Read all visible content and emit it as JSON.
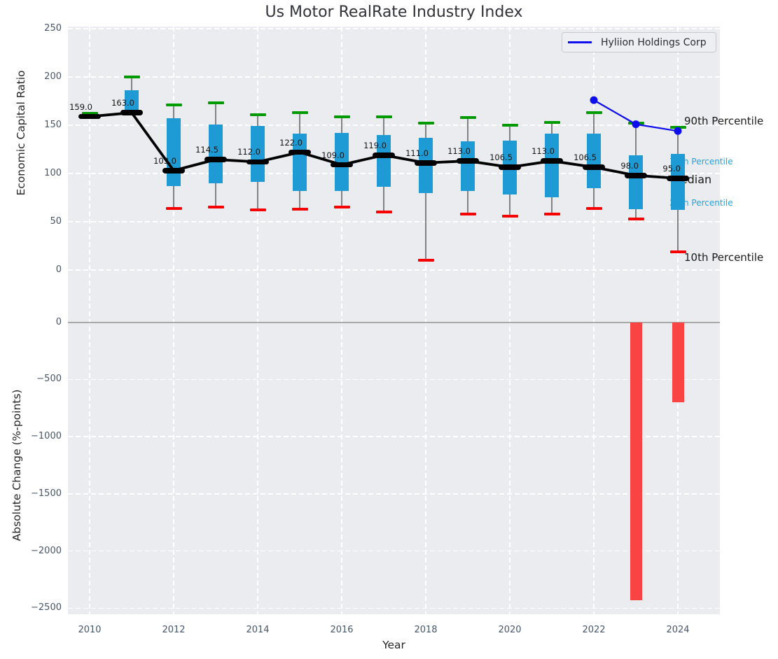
{
  "title": "Us Motor RealRate Industry Index",
  "legend": {
    "label": "Hyliion Holdings Corp"
  },
  "axis_labels": {
    "top_y": "Economic Capital Ratio",
    "bottom_y": "Absolute Change (%-points)",
    "x": "Year"
  },
  "annotations": {
    "p90": "90th Percentile",
    "p75": "75th Percentile",
    "median": "Median",
    "p25": "25th Percentile",
    "p10": "10th Percentile"
  },
  "colors": {
    "box": "#1e9bd4",
    "p90_cap": "#009b00",
    "p10_cap": "#f80000",
    "median_line": "#000000",
    "overlay_line": "#0d0dee",
    "bar": "#fa4343",
    "percentile_label": "#25a3dd",
    "whisker": "#828282",
    "plot_bg": "#eaecf0",
    "grid": "#ffffff",
    "tick": "#47566b",
    "zero_line": "#a9a9a9"
  },
  "chart_data": [
    {
      "type": "boxplot",
      "title": "Us Motor RealRate Industry Index",
      "xlabel": "Year",
      "ylabel": "Economic Capital Ratio",
      "ylim": [
        0,
        250
      ],
      "yticks": [
        250,
        200,
        150,
        100,
        50,
        0
      ],
      "xticks": [
        2010,
        2012,
        2014,
        2016,
        2018,
        2020,
        2022,
        2024
      ],
      "grid": true,
      "legend_position": "upper right",
      "categories": [
        2010,
        2011,
        2012,
        2013,
        2014,
        2015,
        2016,
        2017,
        2018,
        2019,
        2020,
        2021,
        2022,
        2023,
        2024
      ],
      "series": [
        {
          "name": "90th Percentile",
          "values": [
            162,
            200,
            171,
            173,
            161,
            163,
            159,
            159,
            152,
            158,
            150,
            153,
            163,
            152,
            148
          ]
        },
        {
          "name": "75th Percentile",
          "values": [
            160,
            186,
            157,
            151,
            149,
            141,
            142,
            140,
            137,
            133,
            134,
            141,
            141,
            119,
            120
          ]
        },
        {
          "name": "Median",
          "values": [
            159,
            163,
            103,
            114.5,
            112,
            122,
            109,
            119,
            111,
            113,
            106.5,
            113,
            106.5,
            98,
            95
          ]
        },
        {
          "name": "25th Percentile",
          "values": [
            158,
            164,
            87,
            90,
            91,
            82,
            82,
            86,
            80,
            82,
            78,
            75,
            85,
            63,
            62
          ]
        },
        {
          "name": "10th Percentile",
          "values": [
            158,
            163,
            64,
            65,
            62,
            63,
            65,
            60,
            10,
            58,
            56,
            58,
            64,
            53,
            19
          ]
        }
      ],
      "point_labels": [
        "159.0",
        "163.0",
        "103.0",
        "114.5",
        "112.0",
        "122.0",
        "109.0",
        "119.0",
        "111.0",
        "113.0",
        "106.5",
        "113.0",
        "106.5",
        "98.0",
        "95.0"
      ],
      "overlay_line": {
        "name": "Hyliion Holdings Corp",
        "x": [
          2022,
          2023,
          2024
        ],
        "y": [
          176,
          151,
          144
        ]
      }
    },
    {
      "type": "bar",
      "xlabel": "Year",
      "ylabel": "Absolute Change (%-points)",
      "ylim": [
        -2500,
        100
      ],
      "yticks": [
        0,
        -500,
        -1000,
        -1500,
        -2000,
        -2500
      ],
      "xticks": [
        2010,
        2012,
        2014,
        2016,
        2018,
        2020,
        2022,
        2024
      ],
      "grid": true,
      "x": [
        2023,
        2024
      ],
      "values": [
        -2430,
        -700
      ]
    }
  ]
}
